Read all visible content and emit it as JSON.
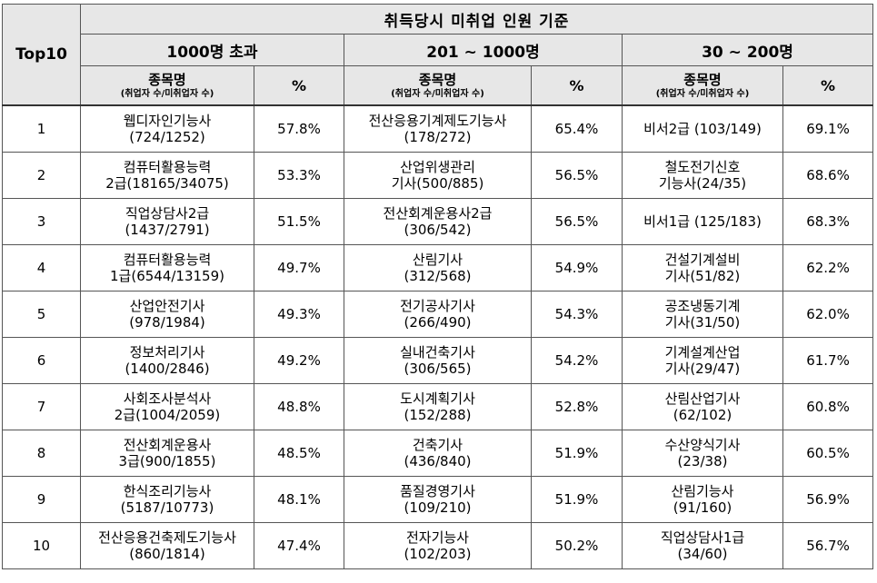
{
  "header": {
    "top10_label": "Top10",
    "main_title": "취득당시 미취업 인원 기준",
    "groups": [
      "1000명 초과",
      "201 ~ 1000명",
      "30 ~ 200명"
    ],
    "col_name_label": "종목명",
    "col_name_sub": "(취업자 수/미취업자 수)",
    "col_pct_label": "%"
  },
  "rows": [
    {
      "rank": "1",
      "g1": {
        "l1": "웹디자인기능사",
        "l2": "(724/1252)",
        "pct": "57.8%"
      },
      "g2": {
        "l1": "전산응용기계제도기능사",
        "l2": "(178/272)",
        "pct": "65.4%"
      },
      "g3": {
        "l1": "비서2급 (103/149)",
        "l2": "",
        "pct": "69.1%"
      }
    },
    {
      "rank": "2",
      "g1": {
        "l1": "컴퓨터활용능력",
        "l2": "2급(18165/34075)",
        "pct": "53.3%"
      },
      "g2": {
        "l1": "산업위생관리",
        "l2": "기사(500/885)",
        "pct": "56.5%"
      },
      "g3": {
        "l1": "철도전기신호",
        "l2": "기능사(24/35)",
        "pct": "68.6%"
      }
    },
    {
      "rank": "3",
      "g1": {
        "l1": "직업상담사2급",
        "l2": "(1437/2791)",
        "pct": "51.5%"
      },
      "g2": {
        "l1": "전산회계운용사2급",
        "l2": "(306/542)",
        "pct": "56.5%"
      },
      "g3": {
        "l1": "비서1급 (125/183)",
        "l2": "",
        "pct": "68.3%"
      }
    },
    {
      "rank": "4",
      "g1": {
        "l1": "컴퓨터활용능력",
        "l2": "1급(6544/13159)",
        "pct": "49.7%"
      },
      "g2": {
        "l1": "산림기사",
        "l2": "(312/568)",
        "pct": "54.9%"
      },
      "g3": {
        "l1": "건설기계설비",
        "l2": "기사(51/82)",
        "pct": "62.2%"
      }
    },
    {
      "rank": "5",
      "g1": {
        "l1": "산업안전기사",
        "l2": "(978/1984)",
        "pct": "49.3%"
      },
      "g2": {
        "l1": "전기공사기사",
        "l2": "(266/490)",
        "pct": "54.3%"
      },
      "g3": {
        "l1": "공조냉동기계",
        "l2": "기사(31/50)",
        "pct": "62.0%"
      }
    },
    {
      "rank": "6",
      "g1": {
        "l1": "정보처리기사",
        "l2": "(1400/2846)",
        "pct": "49.2%"
      },
      "g2": {
        "l1": "실내건축기사",
        "l2": "(306/565)",
        "pct": "54.2%"
      },
      "g3": {
        "l1": "기계설계산업",
        "l2": "기사(29/47)",
        "pct": "61.7%"
      }
    },
    {
      "rank": "7",
      "g1": {
        "l1": "사회조사분석사",
        "l2": "2급(1004/2059)",
        "pct": "48.8%"
      },
      "g2": {
        "l1": "도시계획기사",
        "l2": "(152/288)",
        "pct": "52.8%"
      },
      "g3": {
        "l1": "산림산업기사",
        "l2": "(62/102)",
        "pct": "60.8%"
      }
    },
    {
      "rank": "8",
      "g1": {
        "l1": "전산회계운용사",
        "l2": "3급(900/1855)",
        "pct": "48.5%"
      },
      "g2": {
        "l1": "건축기사",
        "l2": "(436/840)",
        "pct": "51.9%"
      },
      "g3": {
        "l1": "수산양식기사",
        "l2": "(23/38)",
        "pct": "60.5%"
      }
    },
    {
      "rank": "9",
      "g1": {
        "l1": "한식조리기능사",
        "l2": "(5187/10773)",
        "pct": "48.1%"
      },
      "g2": {
        "l1": "품질경영기사",
        "l2": "(109/210)",
        "pct": "51.9%"
      },
      "g3": {
        "l1": "산림기능사",
        "l2": "(91/160)",
        "pct": "56.9%"
      }
    },
    {
      "rank": "10",
      "g1": {
        "l1": "전산응용건축제도기능사",
        "l2": "(860/1814)",
        "pct": "47.4%"
      },
      "g2": {
        "l1": "전자기능사",
        "l2": "(102/203)",
        "pct": "50.2%"
      },
      "g3": {
        "l1": "직업상담사1급",
        "l2": "(34/60)",
        "pct": "56.7%"
      }
    }
  ]
}
